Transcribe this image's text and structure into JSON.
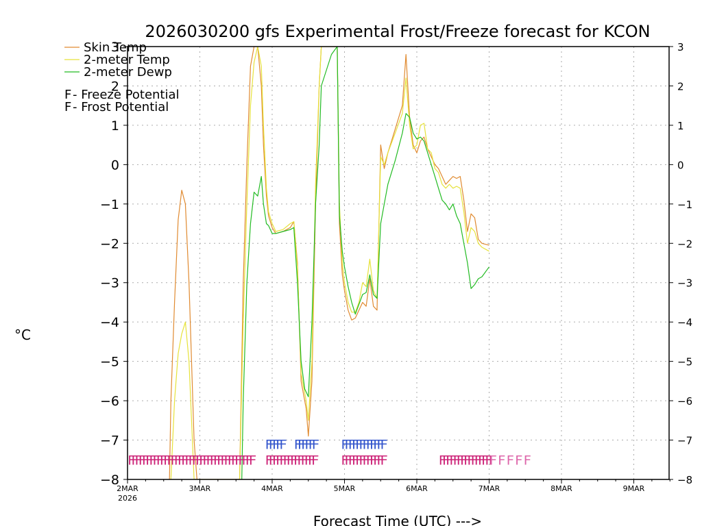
{
  "chart_data": {
    "type": "line",
    "title": "2026030200 gfs Experimental Frost/Freeze forecast for KCON",
    "xlabel": "Forecast Time (UTC) --->",
    "ylabel": "°C",
    "ylim": [
      -8,
      3
    ],
    "xlim": [
      0,
      7.5
    ],
    "y_ticks": [
      3,
      2,
      1,
      0,
      -1,
      -2,
      -3,
      -4,
      -5,
      -6,
      -7,
      -8
    ],
    "x_ticks": [
      {
        "x": 0,
        "label": "2MAR",
        "sub": "2026"
      },
      {
        "x": 1,
        "label": "3MAR",
        "sub": ""
      },
      {
        "x": 2,
        "label": "4MAR",
        "sub": ""
      },
      {
        "x": 3,
        "label": "5MAR",
        "sub": ""
      },
      {
        "x": 4,
        "label": "6MAR",
        "sub": ""
      },
      {
        "x": 5,
        "label": "7MAR",
        "sub": ""
      },
      {
        "x": 6,
        "label": "8MAR",
        "sub": ""
      },
      {
        "x": 7,
        "label": "9MAR",
        "sub": ""
      }
    ],
    "grid": true,
    "series": [
      {
        "name": "Skin Temp",
        "color": "#e08a30",
        "points": [
          [
            0.58,
            -8.0
          ],
          [
            0.6,
            -6.0
          ],
          [
            0.65,
            -3.5
          ],
          [
            0.7,
            -1.4
          ],
          [
            0.75,
            -0.65
          ],
          [
            0.8,
            -1.0
          ],
          [
            0.85,
            -3.0
          ],
          [
            0.92,
            -7.0
          ],
          [
            0.96,
            -8.0
          ],
          [
            1.5,
            -8.0
          ],
          [
            1.55,
            -8.0
          ],
          [
            1.6,
            -3.0
          ],
          [
            1.65,
            0.0
          ],
          [
            1.7,
            2.5
          ],
          [
            1.75,
            3.0
          ],
          [
            1.8,
            3.0
          ],
          [
            1.85,
            2.0
          ],
          [
            1.88,
            0.5
          ],
          [
            1.92,
            -0.8
          ],
          [
            1.95,
            -1.3
          ],
          [
            2.0,
            -1.6
          ],
          [
            2.05,
            -1.75
          ],
          [
            2.15,
            -1.7
          ],
          [
            2.25,
            -1.6
          ],
          [
            2.3,
            -1.45
          ],
          [
            2.35,
            -2.5
          ],
          [
            2.4,
            -5.5
          ],
          [
            2.47,
            -6.2
          ],
          [
            2.5,
            -6.9
          ],
          [
            2.55,
            -5.5
          ],
          [
            2.6,
            -1.0
          ],
          [
            2.65,
            2.0
          ],
          [
            2.68,
            3.0
          ],
          [
            2.75,
            3.0
          ],
          [
            2.82,
            3.0
          ],
          [
            2.9,
            3.0
          ],
          [
            2.93,
            -1.5
          ],
          [
            2.97,
            -2.8
          ],
          [
            3.0,
            -3.2
          ],
          [
            3.05,
            -3.7
          ],
          [
            3.1,
            -3.95
          ],
          [
            3.15,
            -3.9
          ],
          [
            3.2,
            -3.7
          ],
          [
            3.25,
            -3.5
          ],
          [
            3.3,
            -3.6
          ],
          [
            3.35,
            -2.9
          ],
          [
            3.4,
            -3.6
          ],
          [
            3.45,
            -3.7
          ],
          [
            3.5,
            0.5
          ],
          [
            3.55,
            -0.1
          ],
          [
            3.6,
            0.3
          ],
          [
            3.65,
            0.6
          ],
          [
            3.7,
            0.9
          ],
          [
            3.8,
            1.5
          ],
          [
            3.85,
            2.8
          ],
          [
            3.9,
            1.2
          ],
          [
            3.95,
            0.5
          ],
          [
            4.0,
            0.3
          ],
          [
            4.05,
            0.6
          ],
          [
            4.1,
            0.7
          ],
          [
            4.15,
            0.4
          ],
          [
            4.2,
            0.2
          ],
          [
            4.25,
            0.0
          ],
          [
            4.3,
            -0.1
          ],
          [
            4.35,
            -0.3
          ],
          [
            4.4,
            -0.5
          ],
          [
            4.45,
            -0.4
          ],
          [
            4.5,
            -0.3
          ],
          [
            4.55,
            -0.35
          ],
          [
            4.6,
            -0.3
          ],
          [
            4.65,
            -0.9
          ],
          [
            4.7,
            -1.7
          ],
          [
            4.75,
            -1.25
          ],
          [
            4.8,
            -1.35
          ],
          [
            4.85,
            -1.9
          ],
          [
            4.9,
            -2.0
          ],
          [
            5.0,
            -2.05
          ]
        ]
      },
      {
        "name": "2-meter Temp",
        "color": "#e6e23a",
        "points": [
          [
            0.6,
            -8.0
          ],
          [
            0.65,
            -6.0
          ],
          [
            0.7,
            -4.8
          ],
          [
            0.75,
            -4.3
          ],
          [
            0.8,
            -4.0
          ],
          [
            0.85,
            -5.0
          ],
          [
            0.92,
            -8.0
          ],
          [
            1.55,
            -8.0
          ],
          [
            1.6,
            -4.0
          ],
          [
            1.65,
            -1.0
          ],
          [
            1.7,
            1.5
          ],
          [
            1.75,
            2.6
          ],
          [
            1.8,
            3.0
          ],
          [
            1.85,
            2.5
          ],
          [
            1.88,
            1.0
          ],
          [
            1.92,
            -0.6
          ],
          [
            1.95,
            -1.2
          ],
          [
            2.0,
            -1.5
          ],
          [
            2.05,
            -1.7
          ],
          [
            2.15,
            -1.65
          ],
          [
            2.25,
            -1.5
          ],
          [
            2.3,
            -1.45
          ],
          [
            2.35,
            -2.6
          ],
          [
            2.4,
            -5.3
          ],
          [
            2.47,
            -6.0
          ],
          [
            2.5,
            -6.5
          ],
          [
            2.55,
            -5.0
          ],
          [
            2.6,
            -0.5
          ],
          [
            2.65,
            2.0
          ],
          [
            2.68,
            3.0
          ],
          [
            2.82,
            3.0
          ],
          [
            2.9,
            3.0
          ],
          [
            2.93,
            -1.0
          ],
          [
            2.97,
            -2.5
          ],
          [
            3.0,
            -3.0
          ],
          [
            3.05,
            -3.5
          ],
          [
            3.1,
            -3.75
          ],
          [
            3.15,
            -3.75
          ],
          [
            3.2,
            -3.5
          ],
          [
            3.25,
            -3.0
          ],
          [
            3.3,
            -3.1
          ],
          [
            3.35,
            -2.4
          ],
          [
            3.4,
            -3.2
          ],
          [
            3.45,
            -3.4
          ],
          [
            3.5,
            0.2
          ],
          [
            3.55,
            0.0
          ],
          [
            3.6,
            0.3
          ],
          [
            3.7,
            0.8
          ],
          [
            3.8,
            1.3
          ],
          [
            3.85,
            2.2
          ],
          [
            3.9,
            1.0
          ],
          [
            3.95,
            0.4
          ],
          [
            4.0,
            0.5
          ],
          [
            4.05,
            1.0
          ],
          [
            4.1,
            1.05
          ],
          [
            4.15,
            0.4
          ],
          [
            4.2,
            0.3
          ],
          [
            4.25,
            -0.1
          ],
          [
            4.3,
            -0.2
          ],
          [
            4.35,
            -0.5
          ],
          [
            4.4,
            -0.6
          ],
          [
            4.45,
            -0.5
          ],
          [
            4.5,
            -0.6
          ],
          [
            4.55,
            -0.55
          ],
          [
            4.6,
            -0.6
          ],
          [
            4.65,
            -1.2
          ],
          [
            4.7,
            -2.0
          ],
          [
            4.75,
            -1.6
          ],
          [
            4.8,
            -1.7
          ],
          [
            4.85,
            -2.0
          ],
          [
            4.9,
            -2.1
          ],
          [
            5.0,
            -2.2
          ]
        ]
      },
      {
        "name": "2-meter Dewp",
        "color": "#22bb22",
        "points": [
          [
            1.58,
            -8.0
          ],
          [
            1.6,
            -6.0
          ],
          [
            1.65,
            -3.0
          ],
          [
            1.7,
            -1.5
          ],
          [
            1.75,
            -0.7
          ],
          [
            1.8,
            -0.8
          ],
          [
            1.85,
            -0.3
          ],
          [
            1.88,
            -1.0
          ],
          [
            1.92,
            -1.5
          ],
          [
            1.95,
            -1.55
          ],
          [
            2.0,
            -1.75
          ],
          [
            2.05,
            -1.75
          ],
          [
            2.15,
            -1.7
          ],
          [
            2.25,
            -1.65
          ],
          [
            2.3,
            -1.6
          ],
          [
            2.35,
            -3.0
          ],
          [
            2.4,
            -5.0
          ],
          [
            2.45,
            -5.7
          ],
          [
            2.5,
            -5.9
          ],
          [
            2.55,
            -4.0
          ],
          [
            2.6,
            -1.0
          ],
          [
            2.65,
            0.5
          ],
          [
            2.68,
            2.0
          ],
          [
            2.75,
            2.4
          ],
          [
            2.82,
            2.8
          ],
          [
            2.9,
            3.0
          ],
          [
            2.93,
            -1.3
          ],
          [
            2.97,
            -2.2
          ],
          [
            3.0,
            -2.6
          ],
          [
            3.05,
            -3.1
          ],
          [
            3.1,
            -3.5
          ],
          [
            3.15,
            -3.8
          ],
          [
            3.2,
            -3.55
          ],
          [
            3.25,
            -3.3
          ],
          [
            3.3,
            -3.25
          ],
          [
            3.35,
            -2.8
          ],
          [
            3.4,
            -3.3
          ],
          [
            3.45,
            -3.4
          ],
          [
            3.5,
            -1.5
          ],
          [
            3.55,
            -1.0
          ],
          [
            3.6,
            -0.5
          ],
          [
            3.7,
            0.1
          ],
          [
            3.8,
            0.8
          ],
          [
            3.85,
            1.3
          ],
          [
            3.9,
            1.2
          ],
          [
            3.95,
            0.8
          ],
          [
            4.0,
            0.65
          ],
          [
            4.05,
            0.7
          ],
          [
            4.1,
            0.6
          ],
          [
            4.15,
            0.3
          ],
          [
            4.2,
            0.0
          ],
          [
            4.25,
            -0.3
          ],
          [
            4.3,
            -0.6
          ],
          [
            4.35,
            -0.9
          ],
          [
            4.4,
            -1.0
          ],
          [
            4.45,
            -1.15
          ],
          [
            4.5,
            -1.0
          ],
          [
            4.55,
            -1.3
          ],
          [
            4.6,
            -1.5
          ],
          [
            4.65,
            -2.0
          ],
          [
            4.7,
            -2.5
          ],
          [
            4.75,
            -3.15
          ],
          [
            4.8,
            -3.05
          ],
          [
            4.85,
            -2.9
          ],
          [
            4.9,
            -2.85
          ],
          [
            5.0,
            -2.6
          ]
        ]
      }
    ],
    "freeze_potential": {
      "name": "Freeze Potential",
      "color": "#cc2277",
      "symbol": "F",
      "y": -7.5,
      "segments": [
        [
          0.0,
          1.7
        ],
        [
          1.9,
          2.55
        ],
        [
          2.95,
          3.5
        ],
        [
          4.3,
          5.0
        ]
      ]
    },
    "freeze_potential_light": {
      "color": "#dd66aa",
      "symbol": "F",
      "y": -7.5,
      "segments": [
        [
          5.0,
          5.55
        ]
      ]
    },
    "frost_potential": {
      "name": "Frost Potential",
      "color": "#3355cc",
      "symbol": "F",
      "y": -7.1,
      "segments": [
        [
          1.9,
          2.1
        ],
        [
          2.3,
          2.55
        ],
        [
          2.95,
          3.5
        ]
      ]
    },
    "legend": [
      {
        "label": "Skin Temp",
        "color": "#e08a30",
        "kind": "line"
      },
      {
        "label": "2-meter Temp",
        "color": "#e6e23a",
        "kind": "line"
      },
      {
        "label": "2-meter Dewp",
        "color": "#22bb22",
        "kind": "line"
      },
      {
        "label": "F - Freeze Potential",
        "color": "#cc2277",
        "kind": "text"
      },
      {
        "label": "F - Frost Potential",
        "color": "#3355cc",
        "kind": "text"
      }
    ]
  }
}
